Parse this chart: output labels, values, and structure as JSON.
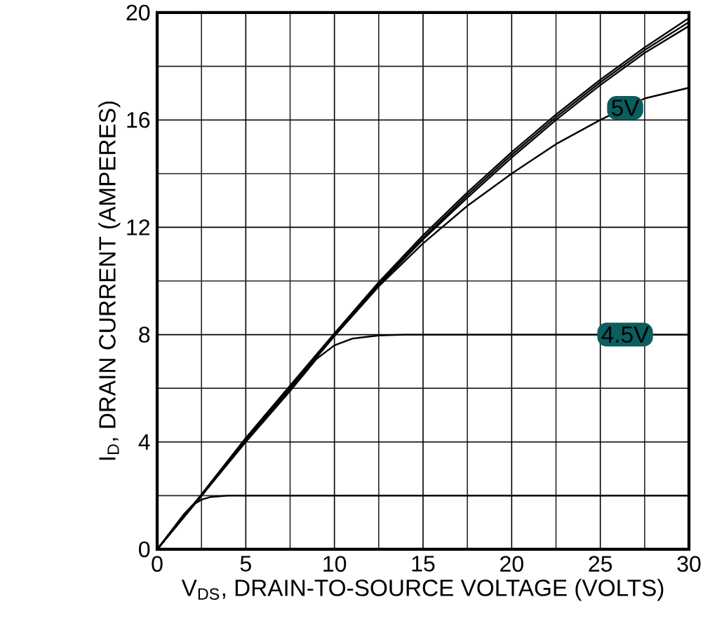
{
  "chart_data": {
    "type": "line",
    "xlabel": "V$_{DS}$, DRAIN-TO-SOURCE VOLTAGE (VOLTS)",
    "ylabel": "I$_{D}$, DRAIN CURRENT (AMPERES)",
    "xlim": [
      0,
      30
    ],
    "ylim": [
      0,
      20
    ],
    "xticks": [
      0,
      5,
      10,
      15,
      20,
      25,
      30
    ],
    "yticks": [
      0,
      4,
      8,
      12,
      16,
      20
    ],
    "grid": true,
    "marker": "none",
    "line_style": "solid",
    "series": [
      {
        "color": "#000000",
        "x": [
          0,
          2.5,
          5,
          7.5,
          10,
          12.5,
          15,
          17.5,
          20,
          22.5,
          25,
          27.5,
          30
        ],
        "values": [
          0,
          2.05,
          4.15,
          6.1,
          8.05,
          9.95,
          11.7,
          13.3,
          14.8,
          16.2,
          17.5,
          18.7,
          19.8
        ]
      },
      {
        "color": "#000000",
        "x": [
          0,
          2.5,
          5,
          7.5,
          10,
          12.5,
          15,
          17.5,
          20,
          22.5,
          25,
          27.5,
          30
        ],
        "values": [
          0,
          2.0,
          4.1,
          6.05,
          8.0,
          9.9,
          11.6,
          13.2,
          14.7,
          16.1,
          17.4,
          18.6,
          19.65
        ]
      },
      {
        "color": "#000000",
        "x": [
          0,
          2.5,
          5,
          7.5,
          10,
          12.5,
          15,
          17.5,
          20,
          22.5,
          25,
          27.5,
          30
        ],
        "values": [
          0,
          2.0,
          4.05,
          6.0,
          7.95,
          9.85,
          11.55,
          13.1,
          14.6,
          16.0,
          17.3,
          18.5,
          19.5
        ]
      },
      {
        "name": "5V",
        "color": "#000000",
        "x": [
          0,
          2.5,
          5,
          7.5,
          10,
          12.5,
          15,
          17.5,
          20,
          22.5,
          25,
          27.5,
          30
        ],
        "values": [
          0,
          2.0,
          4.05,
          6.0,
          7.95,
          9.8,
          11.4,
          12.8,
          14.0,
          15.1,
          16.0,
          16.8,
          17.2
        ]
      },
      {
        "name": "4.5V",
        "color": "#000000",
        "x": [
          0,
          2.5,
          5,
          7.5,
          9,
          10,
          11,
          12.5,
          14,
          20,
          30
        ],
        "values": [
          0,
          2.0,
          4.0,
          5.9,
          7.1,
          7.6,
          7.85,
          7.97,
          8.0,
          8.0,
          8.0
        ]
      },
      {
        "color": "#000000",
        "x": [
          0,
          1.5,
          2,
          2.5,
          3,
          4,
          5,
          10,
          20,
          30
        ],
        "values": [
          0,
          1.3,
          1.65,
          1.85,
          1.95,
          2.0,
          2.0,
          2.0,
          2.0,
          2.0
        ]
      }
    ]
  }
}
